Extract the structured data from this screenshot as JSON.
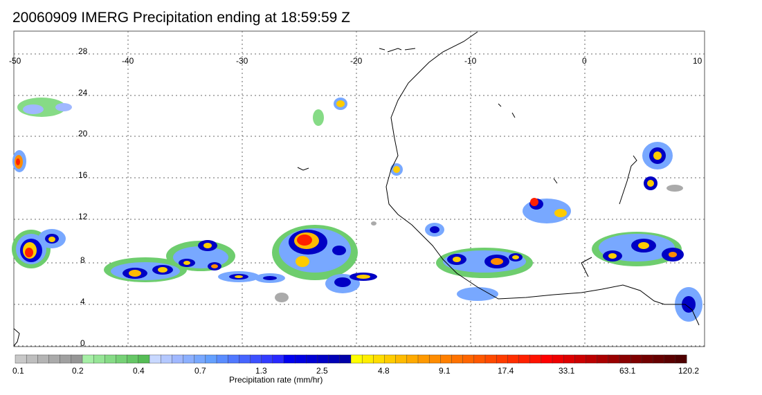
{
  "title": "20060909 IMERG Precipitation ending at 18:59:59 Z",
  "map": {
    "lon_range": [
      -50,
      10
    ],
    "lat_range": [
      -1,
      31
    ],
    "lon_ticks": [
      "-50",
      "-40",
      "-30",
      "-20",
      "-10",
      "0",
      "10"
    ],
    "lat_ticks": [
      "28",
      "24",
      "20",
      "16",
      "12",
      "8",
      "4",
      "0"
    ],
    "grid": true,
    "grid_style": "dotted"
  },
  "colorbar": {
    "label": "Precipitation rate (mm/hr)",
    "tick_labels": [
      "0.1",
      "0.2",
      "0.4",
      "0.7",
      "1.3",
      "2.5",
      "4.8",
      "9.1",
      "17.4",
      "33.1",
      "63.1",
      "120.2"
    ],
    "colors": [
      "#c8c8c8",
      "#bebebe",
      "#b4b4b4",
      "#aaaaaa",
      "#a0a0a0",
      "#969696",
      "#a6efa6",
      "#96e596",
      "#86db86",
      "#76d176",
      "#66c766",
      "#56bd56",
      "#c8d8ff",
      "#b4c8ff",
      "#a0b8ff",
      "#8cb0ff",
      "#78a8ff",
      "#64a0ff",
      "#5a8cff",
      "#5078ff",
      "#4664ff",
      "#3c50ff",
      "#323cff",
      "#2828ff",
      "#0000ee",
      "#0000e0",
      "#0000d2",
      "#0000c4",
      "#0000b6",
      "#0000a8",
      "#ffff00",
      "#ffee00",
      "#ffdd00",
      "#ffcc00",
      "#ffbb00",
      "#ffaa00",
      "#ff9900",
      "#ff8c00",
      "#ff7f00",
      "#ff7200",
      "#ff6500",
      "#ff5800",
      "#ff4a00",
      "#ff3c00",
      "#ff2e00",
      "#ff2000",
      "#ff1200",
      "#ff0000",
      "#ee0000",
      "#dd0000",
      "#cc0000",
      "#bb0000",
      "#aa0000",
      "#990000",
      "#8a0000",
      "#7e0000",
      "#720000",
      "#660000",
      "#5a0000",
      "#4e0000"
    ]
  }
}
